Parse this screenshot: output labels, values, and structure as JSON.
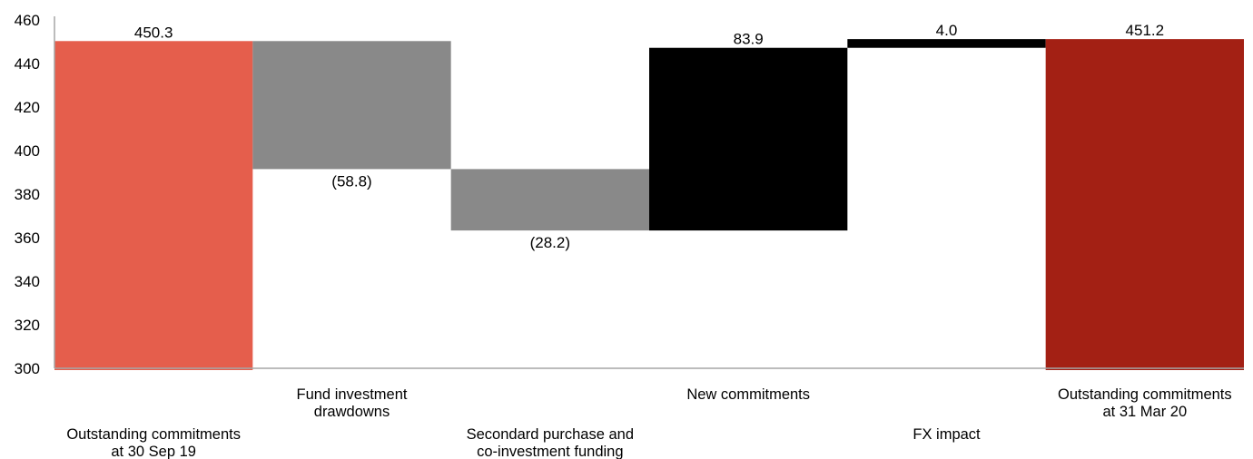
{
  "chart_data": {
    "type": "bar",
    "subtype": "waterfall",
    "ylim": [
      300,
      460
    ],
    "y_ticks": [
      300,
      320,
      340,
      360,
      380,
      400,
      420,
      440,
      460
    ],
    "grid": false,
    "steps": [
      {
        "label": [
          "Outstanding commitments",
          "at 30 Sep 19"
        ],
        "kind": "total",
        "value": 450.3,
        "display": "450.3",
        "color": "#e55e4c",
        "label_row": "low"
      },
      {
        "label": [
          "Fund investment",
          "drawdowns"
        ],
        "kind": "delta",
        "value": -58.8,
        "display": "(58.8)",
        "color": "#898989",
        "label_row": "high"
      },
      {
        "label": [
          "Secondard purchase and",
          "co-investment funding"
        ],
        "kind": "delta",
        "value": -28.2,
        "display": "(28.2)",
        "color": "#898989",
        "label_row": "low"
      },
      {
        "label": [
          "New commitments"
        ],
        "kind": "delta",
        "value": 83.9,
        "display": "83.9",
        "color": "#000000",
        "label_row": "high"
      },
      {
        "label": [
          "FX impact"
        ],
        "kind": "delta",
        "value": 4.0,
        "display": "4.0",
        "color": "#000000",
        "label_row": "low"
      },
      {
        "label": [
          "Outstanding commitments",
          "at 31 Mar 20"
        ],
        "kind": "total",
        "value": 451.2,
        "display": "451.2",
        "color": "#a32014",
        "label_row": "high"
      }
    ]
  }
}
